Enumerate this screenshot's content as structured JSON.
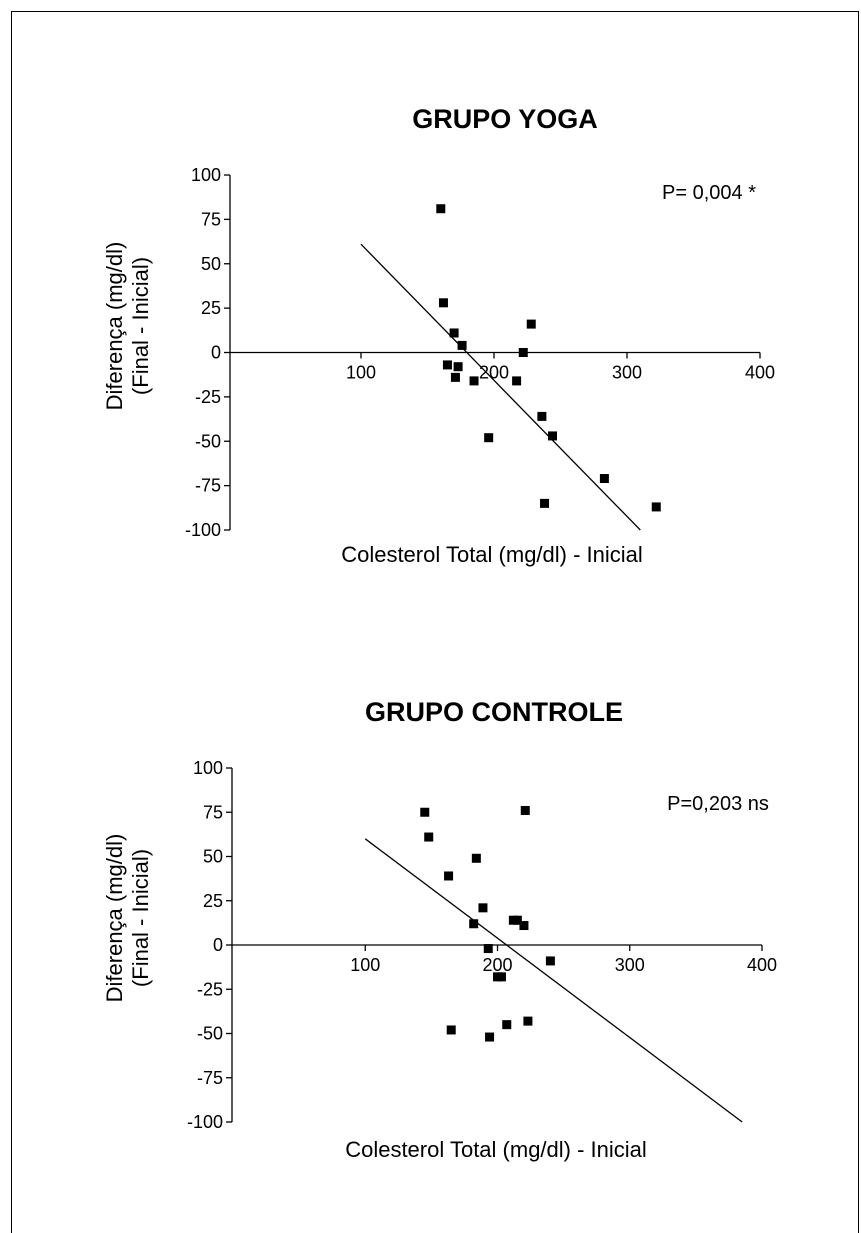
{
  "chart_data": [
    {
      "type": "scatter",
      "title": "GRUPO YOGA",
      "xlabel": "Colesterol Total (mg/dl) - Inicial",
      "ylabel_line1": "Diferença (mg/dl)",
      "ylabel_line2": "(Final - Inicial)",
      "annotation": "P= 0,004 *",
      "xlim": [
        0,
        400
      ],
      "ylim": [
        -100,
        100
      ],
      "xticks": [
        100,
        200,
        300,
        400
      ],
      "yticks": [
        -100,
        -75,
        -50,
        -25,
        0,
        25,
        50,
        75,
        100
      ],
      "points": [
        {
          "x": 160,
          "y": 81
        },
        {
          "x": 162,
          "y": 28
        },
        {
          "x": 165,
          "y": -7
        },
        {
          "x": 170,
          "y": 11
        },
        {
          "x": 171,
          "y": -14
        },
        {
          "x": 173,
          "y": -8
        },
        {
          "x": 176,
          "y": 4
        },
        {
          "x": 185,
          "y": -16
        },
        {
          "x": 196,
          "y": -48
        },
        {
          "x": 217,
          "y": -16
        },
        {
          "x": 222,
          "y": 0
        },
        {
          "x": 228,
          "y": 16
        },
        {
          "x": 236,
          "y": -36
        },
        {
          "x": 238,
          "y": -85
        },
        {
          "x": 244,
          "y": -47
        },
        {
          "x": 283,
          "y": -71
        },
        {
          "x": 322,
          "y": -87
        }
      ],
      "fit_line": {
        "x": [
          100,
          310
        ],
        "y": [
          61,
          -100
        ]
      },
      "grid": false
    },
    {
      "type": "scatter",
      "title": "GRUPO CONTROLE",
      "xlabel": "Colesterol Total (mg/dl) - Inicial",
      "ylabel_line1": "Diferença (mg/dl)",
      "ylabel_line2": "(Final - Inicial)",
      "annotation": "P=0,203 ns",
      "xlim": [
        0,
        400
      ],
      "ylim": [
        -100,
        100
      ],
      "xticks": [
        100,
        200,
        300,
        400
      ],
      "yticks": [
        -100,
        -75,
        -50,
        -25,
        0,
        25,
        50,
        75,
        100
      ],
      "points": [
        {
          "x": 145,
          "y": 75
        },
        {
          "x": 148,
          "y": 61
        },
        {
          "x": 163,
          "y": 39
        },
        {
          "x": 165,
          "y": -48
        },
        {
          "x": 182,
          "y": 12
        },
        {
          "x": 184,
          "y": 49
        },
        {
          "x": 189,
          "y": 21
        },
        {
          "x": 193,
          "y": -2
        },
        {
          "x": 194,
          "y": -52
        },
        {
          "x": 200,
          "y": -18
        },
        {
          "x": 203,
          "y": -18
        },
        {
          "x": 207,
          "y": -45
        },
        {
          "x": 212,
          "y": 14
        },
        {
          "x": 215,
          "y": 14
        },
        {
          "x": 220,
          "y": 11
        },
        {
          "x": 221,
          "y": 76
        },
        {
          "x": 223,
          "y": -43
        },
        {
          "x": 240,
          "y": -9
        }
      ],
      "fit_line": {
        "x": [
          100,
          385
        ],
        "y": [
          60,
          -100
        ]
      },
      "grid": false
    }
  ]
}
